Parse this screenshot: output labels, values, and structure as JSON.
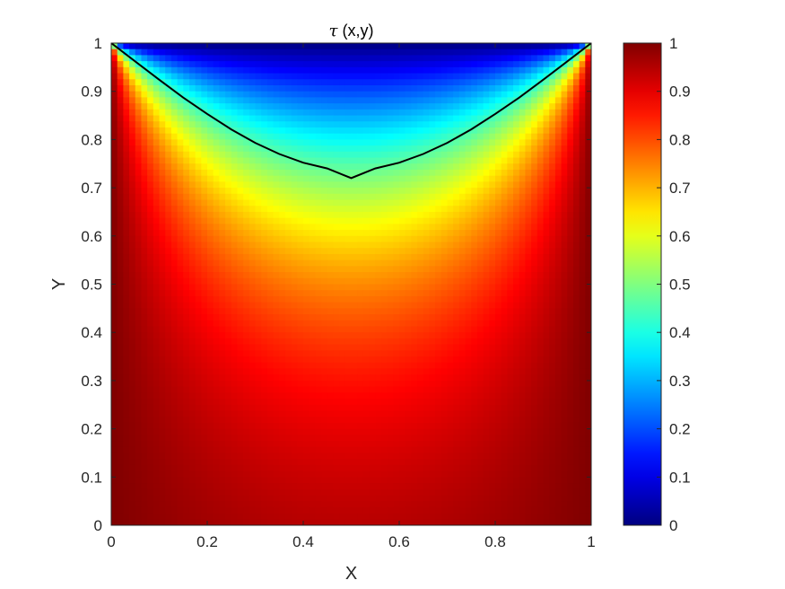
{
  "chart_data": {
    "type": "heatmap",
    "title_symbol": "τ",
    "title_args": " (x,y)",
    "xlabel": "X",
    "ylabel": "Y",
    "xlim": [
      0,
      1
    ],
    "ylim": [
      0,
      1
    ],
    "x_ticks": [
      "0",
      "0.2",
      "0.4",
      "0.6",
      "0.8",
      "1"
    ],
    "y_ticks": [
      "0",
      "0.1",
      "0.2",
      "0.3",
      "0.4",
      "0.5",
      "0.6",
      "0.7",
      "0.8",
      "0.9",
      "1"
    ],
    "colorbar": {
      "colormap": "jet",
      "range": [
        0,
        1
      ],
      "ticks": [
        "0",
        "0.1",
        "0.2",
        "0.3",
        "0.4",
        "0.5",
        "0.6",
        "0.7",
        "0.8",
        "0.9",
        "1"
      ]
    },
    "field_samples": [
      {
        "x": 0.5,
        "y": 1.0,
        "value": 0.0
      },
      {
        "x": 0.5,
        "y": 0.9,
        "value": 0.25
      },
      {
        "x": 0.5,
        "y": 0.8,
        "value": 0.42
      },
      {
        "x": 0.5,
        "y": 0.72,
        "value": 0.5
      },
      {
        "x": 0.5,
        "y": 0.6,
        "value": 0.68
      },
      {
        "x": 0.5,
        "y": 0.5,
        "value": 0.8
      },
      {
        "x": 0.5,
        "y": 0.3,
        "value": 0.88
      },
      {
        "x": 0.5,
        "y": 0.1,
        "value": 0.95
      },
      {
        "x": 0.0,
        "y": 0.5,
        "value": 1.0
      },
      {
        "x": 1.0,
        "y": 0.5,
        "value": 1.0
      },
      {
        "x": 0.5,
        "y": 0.0,
        "value": 1.0
      }
    ],
    "contour_line": {
      "level": 0.5,
      "color": "#000000",
      "x": [
        0.0,
        0.05,
        0.1,
        0.15,
        0.2,
        0.25,
        0.3,
        0.35,
        0.4,
        0.45,
        0.5,
        0.55,
        0.6,
        0.65,
        0.7,
        0.75,
        0.8,
        0.85,
        0.9,
        0.95,
        1.0
      ],
      "y": [
        1.0,
        0.962,
        0.924,
        0.887,
        0.853,
        0.821,
        0.793,
        0.77,
        0.752,
        0.74,
        0.72,
        0.74,
        0.752,
        0.77,
        0.793,
        0.821,
        0.853,
        0.887,
        0.924,
        0.962,
        1.0
      ]
    }
  }
}
